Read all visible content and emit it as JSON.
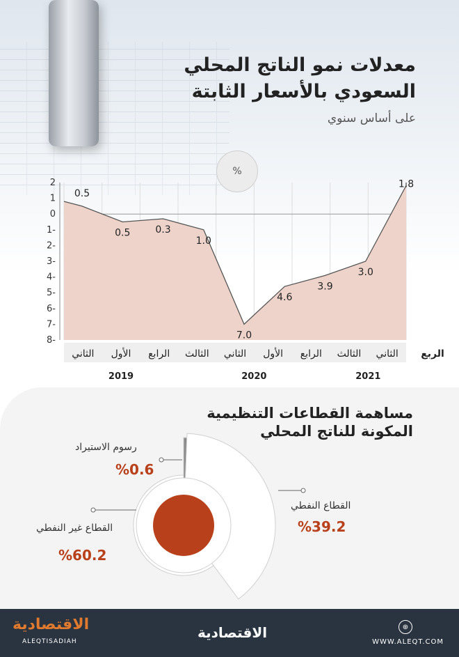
{
  "header": {
    "title_line1": "معدلات نمو الناتج المحلي",
    "title_line2": "السعودي بالأسعار الثابتة",
    "subtitle": "على أساس سنوي",
    "unit": "%"
  },
  "chart_data": [
    {
      "type": "area",
      "title": "معدلات نمو الناتج المحلي السعودي بالأسعار الثابتة",
      "subtitle": "على أساس سنوي",
      "ylabel": "%",
      "ylim": [
        -8,
        2
      ],
      "yticks": [
        "2",
        "1",
        "0",
        "1-",
        "2-",
        "3-",
        "4-",
        "5-",
        "6-",
        "7-",
        "8-"
      ],
      "x_axis_label": "الربع",
      "categories": [
        "الثاني",
        "الثالث",
        "الرابع",
        "الأول",
        "الثاني",
        "الثالث",
        "الرابع",
        "الأول",
        "الثاني"
      ],
      "years": [
        {
          "label": "2019",
          "quarters": 3
        },
        {
          "label": "2020",
          "quarters": 4
        },
        {
          "label": "2021",
          "quarters": 2
        }
      ],
      "values": [
        0.5,
        -0.5,
        -0.3,
        -1.0,
        -7.0,
        -4.6,
        -3.9,
        -3.0,
        1.8
      ],
      "data_labels": [
        "0.5",
        "0.5",
        "0.3",
        "1.0",
        "7.0",
        "4.6",
        "3.9",
        "3.0",
        "1.8"
      ],
      "fill_color": "#eed3ca",
      "line_color": "#555555",
      "grid": "vertical"
    },
    {
      "type": "pie",
      "title": "مساهمة القطاعات التنظيمية المكونة للناتج المحلي",
      "slices": [
        {
          "label": "القطاع غير النفطي",
          "value": 60.2,
          "display": "%60.2"
        },
        {
          "label": "القطاع النفطي",
          "value": 39.2,
          "display": "%39.2"
        },
        {
          "label": "رسوم الاستيراد",
          "value": 0.6,
          "display": "%0.6"
        }
      ],
      "center_color": "#b8401a"
    }
  ],
  "footer": {
    "logo_left": "الاقتصادية",
    "logo_left_sub": "ALEQTISADIAH",
    "logo_mid": "الاقتصادية",
    "url": "WWW.ALEQT.COM",
    "icon": "globe-icon"
  }
}
